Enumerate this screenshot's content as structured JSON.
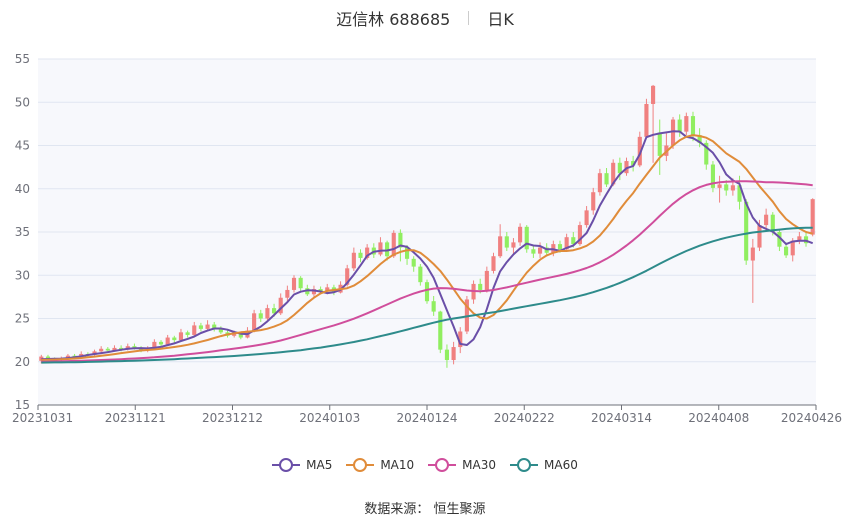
{
  "header": {
    "title_left": "迈信林 688685",
    "title_right": "日K"
  },
  "source_label": "数据来源：  恒生聚源",
  "chart_data": {
    "type": "candlestick",
    "x_ticks": [
      "20231031",
      "20231121",
      "20231212",
      "20240103",
      "20240124",
      "20240222",
      "20240314",
      "20240408",
      "20240426"
    ],
    "ylim": [
      15,
      55
    ],
    "y_ticks": [
      15,
      20,
      25,
      30,
      35,
      40,
      45,
      50,
      55
    ],
    "up_color": "#f08080",
    "down_color": "#90ee60",
    "series": [
      {
        "name": "MA5",
        "color": "#6a4fa8",
        "key": "ma5"
      },
      {
        "name": "MA10",
        "color": "#e08c3a",
        "key": "ma10"
      },
      {
        "name": "MA30",
        "color": "#d04e9c",
        "key": "ma30"
      },
      {
        "name": "MA60",
        "color": "#2e8b8b",
        "key": "ma60"
      }
    ],
    "candles": [
      [
        20.1,
        20.6,
        19.8,
        20.8
      ],
      [
        20.6,
        20.3,
        20.1,
        20.8
      ],
      [
        20.3,
        20.2,
        20.0,
        20.5
      ],
      [
        20.2,
        20.4,
        20.0,
        20.6
      ],
      [
        20.4,
        20.7,
        20.2,
        20.9
      ],
      [
        20.7,
        20.5,
        20.3,
        20.9
      ],
      [
        20.5,
        20.9,
        20.4,
        21.2
      ],
      [
        20.9,
        20.8,
        20.6,
        21.1
      ],
      [
        20.8,
        21.2,
        20.7,
        21.4
      ],
      [
        21.2,
        21.5,
        21.0,
        21.8
      ],
      [
        21.5,
        21.3,
        21.0,
        21.7
      ],
      [
        21.3,
        21.6,
        21.2,
        21.9
      ],
      [
        21.6,
        21.4,
        21.2,
        21.9
      ],
      [
        21.4,
        21.8,
        21.3,
        22.1
      ],
      [
        21.8,
        21.6,
        21.4,
        22.1
      ],
      [
        21.6,
        21.3,
        21.1,
        21.8
      ],
      [
        21.3,
        21.5,
        21.1,
        21.8
      ],
      [
        21.5,
        22.3,
        21.4,
        22.6
      ],
      [
        22.3,
        22.0,
        21.8,
        22.5
      ],
      [
        22.0,
        22.8,
        21.9,
        23.1
      ],
      [
        22.8,
        22.5,
        22.2,
        23.0
      ],
      [
        22.5,
        23.4,
        22.4,
        23.8
      ],
      [
        23.4,
        23.1,
        22.8,
        23.6
      ],
      [
        23.1,
        24.2,
        23.0,
        24.6
      ],
      [
        24.2,
        23.8,
        23.5,
        24.5
      ],
      [
        23.8,
        24.3,
        23.6,
        24.8
      ],
      [
        24.3,
        23.8,
        23.5,
        24.6
      ],
      [
        23.8,
        23.4,
        23.2,
        24.1
      ],
      [
        23.4,
        23.0,
        22.8,
        23.6
      ],
      [
        23.0,
        23.2,
        22.8,
        23.6
      ],
      [
        23.2,
        22.8,
        22.6,
        23.5
      ],
      [
        22.8,
        23.6,
        22.7,
        24.0
      ],
      [
        23.6,
        25.6,
        23.4,
        26.0
      ],
      [
        25.6,
        25.0,
        24.6,
        26.0
      ],
      [
        25.0,
        26.2,
        24.8,
        26.6
      ],
      [
        26.2,
        25.6,
        25.2,
        26.7
      ],
      [
        25.6,
        27.4,
        25.4,
        27.9
      ],
      [
        27.4,
        28.3,
        27.0,
        28.8
      ],
      [
        28.3,
        29.7,
        28.0,
        30.0
      ],
      [
        29.7,
        28.5,
        28.0,
        29.9
      ],
      [
        28.5,
        27.8,
        27.6,
        28.9
      ],
      [
        27.8,
        28.4,
        27.5,
        28.8
      ],
      [
        28.4,
        28.1,
        27.8,
        28.7
      ],
      [
        28.1,
        28.6,
        27.8,
        29.0
      ],
      [
        28.6,
        28.0,
        27.7,
        28.9
      ],
      [
        28.0,
        28.9,
        27.9,
        29.3
      ],
      [
        28.9,
        30.8,
        28.7,
        31.2
      ],
      [
        30.8,
        32.6,
        30.5,
        33.2
      ],
      [
        32.6,
        32.0,
        31.5,
        33.0
      ],
      [
        32.0,
        33.2,
        31.8,
        33.6
      ],
      [
        33.2,
        32.4,
        32.0,
        33.7
      ],
      [
        32.4,
        33.8,
        32.2,
        34.4
      ],
      [
        33.8,
        32.2,
        31.7,
        34.0
      ],
      [
        32.2,
        34.9,
        32.0,
        35.2
      ],
      [
        34.9,
        33.2,
        31.6,
        35.3
      ],
      [
        33.2,
        31.9,
        31.2,
        33.5
      ],
      [
        31.9,
        31.0,
        30.4,
        32.2
      ],
      [
        31.0,
        29.2,
        28.8,
        31.3
      ],
      [
        29.2,
        27.0,
        26.7,
        29.5
      ],
      [
        27.0,
        25.8,
        25.3,
        27.6
      ],
      [
        25.8,
        21.4,
        21.0,
        25.9
      ],
      [
        21.4,
        20.2,
        19.3,
        22.0
      ],
      [
        20.2,
        21.7,
        19.7,
        22.3
      ],
      [
        21.7,
        23.5,
        21.0,
        24.0
      ],
      [
        23.5,
        27.2,
        23.2,
        27.6
      ],
      [
        27.2,
        29.0,
        26.7,
        29.4
      ],
      [
        29.0,
        28.3,
        27.9,
        29.6
      ],
      [
        28.3,
        30.5,
        28.0,
        31.0
      ],
      [
        30.5,
        32.2,
        30.2,
        32.6
      ],
      [
        32.2,
        34.5,
        32.0,
        35.9
      ],
      [
        34.5,
        33.2,
        32.8,
        35.0
      ],
      [
        33.2,
        33.8,
        32.5,
        34.3
      ],
      [
        33.8,
        35.6,
        33.4,
        36.0
      ],
      [
        35.6,
        33.0,
        32.6,
        35.8
      ],
      [
        33.0,
        32.5,
        32.0,
        33.5
      ],
      [
        32.5,
        33.2,
        32.0,
        33.8
      ],
      [
        33.2,
        32.6,
        32.2,
        33.7
      ],
      [
        32.6,
        33.6,
        32.2,
        34.0
      ],
      [
        33.6,
        33.0,
        32.6,
        34.0
      ],
      [
        33.0,
        34.4,
        32.8,
        34.8
      ],
      [
        34.4,
        33.6,
        33.2,
        35.0
      ],
      [
        33.6,
        35.8,
        33.4,
        36.2
      ],
      [
        35.8,
        37.5,
        35.5,
        38.0
      ],
      [
        37.5,
        39.6,
        37.0,
        40.1
      ],
      [
        39.6,
        41.8,
        39.2,
        42.3
      ],
      [
        41.8,
        40.5,
        40.2,
        42.4
      ],
      [
        40.5,
        43.0,
        40.3,
        43.4
      ],
      [
        43.0,
        41.8,
        41.0,
        43.6
      ],
      [
        41.8,
        43.2,
        41.5,
        43.6
      ],
      [
        43.2,
        42.7,
        42.0,
        43.8
      ],
      [
        42.7,
        46.0,
        42.5,
        46.6
      ],
      [
        46.0,
        49.8,
        45.8,
        50.4
      ],
      [
        49.8,
        51.9,
        43.0,
        52.0
      ],
      [
        46.5,
        43.8,
        41.6,
        48.0
      ],
      [
        43.8,
        45.0,
        43.2,
        46.4
      ],
      [
        45.0,
        48.0,
        44.6,
        48.3
      ],
      [
        48.0,
        46.6,
        46.0,
        48.6
      ],
      [
        46.6,
        48.4,
        46.2,
        48.8
      ],
      [
        48.4,
        46.2,
        45.5,
        48.9
      ],
      [
        46.2,
        45.3,
        44.8,
        47.0
      ],
      [
        45.3,
        42.8,
        42.2,
        45.6
      ],
      [
        42.8,
        40.1,
        39.6,
        43.2
      ],
      [
        40.1,
        40.5,
        38.4,
        41.5
      ],
      [
        40.5,
        39.8,
        39.2,
        41.0
      ],
      [
        39.8,
        40.4,
        39.2,
        41.2
      ],
      [
        40.4,
        38.5,
        37.6,
        41.5
      ],
      [
        38.5,
        31.7,
        31.2,
        38.8
      ],
      [
        31.7,
        33.2,
        26.8,
        34.2
      ],
      [
        33.2,
        35.8,
        32.8,
        36.4
      ],
      [
        35.8,
        37.0,
        35.4,
        37.7
      ],
      [
        37.0,
        35.0,
        34.6,
        37.3
      ],
      [
        35.0,
        33.3,
        32.8,
        35.2
      ],
      [
        33.3,
        32.3,
        32.0,
        33.8
      ],
      [
        32.3,
        34.0,
        31.6,
        34.3
      ],
      [
        34.0,
        34.5,
        33.6,
        35.0
      ],
      [
        34.5,
        33.7,
        33.3,
        34.9
      ],
      [
        34.7,
        38.8,
        34.5,
        38.9
      ]
    ],
    "ma5": [
      20.3,
      20.32,
      20.34,
      20.36,
      20.42,
      20.52,
      20.62,
      20.78,
      20.9,
      21.0,
      21.12,
      21.26,
      21.38,
      21.5,
      21.56,
      21.58,
      21.54,
      21.62,
      21.72,
      21.92,
      22.12,
      22.4,
      22.64,
      22.92,
      23.32,
      23.6,
      23.84,
      23.84,
      23.7,
      23.44,
      23.24,
      23.2,
      23.62,
      24.06,
      24.68,
      25.4,
      26.16,
      26.9,
      27.78,
      28.1,
      28.26,
      28.24,
      28.12,
      27.94,
      28.04,
      28.32,
      29.12,
      30.08,
      31.14,
      32.26,
      32.72,
      32.84,
      32.86,
      33.04,
      33.44,
      33.28,
      32.64,
      31.92,
      31.0,
      29.72,
      27.82,
      25.96,
      24.08,
      22.06,
      21.94,
      22.58,
      24.0,
      26.08,
      28.54,
      30.44,
      31.52,
      32.4,
      33.1,
      33.66,
      33.44,
      33.38,
      33.0,
      33.0,
      32.82,
      33.16,
      33.44,
      34.12,
      34.88,
      36.34,
      38.06,
      39.38,
      40.64,
      41.68,
      42.38,
      42.62,
      44.0,
      45.96,
      46.24,
      46.4,
      46.52,
      46.64,
      46.62,
      46.0,
      45.86,
      45.4,
      44.82,
      44.16,
      43.06,
      41.66,
      40.96,
      40.56,
      38.3,
      36.68,
      35.72,
      35.36,
      35.04,
      34.4,
      33.6,
      33.9,
      34.0,
      34.0,
      33.7
    ],
    "ma10": [
      20.2,
      20.22,
      20.25,
      20.28,
      20.32,
      20.37,
      20.43,
      20.52,
      20.6,
      20.7,
      20.78,
      20.88,
      21.0,
      21.1,
      21.2,
      21.3,
      21.36,
      21.42,
      21.5,
      21.6,
      21.7,
      21.82,
      21.96,
      22.12,
      22.32,
      22.52,
      22.74,
      22.96,
      23.16,
      23.28,
      23.4,
      23.46,
      23.56,
      23.66,
      23.82,
      24.06,
      24.36,
      24.8,
      25.4,
      26.1,
      26.8,
      27.4,
      27.9,
      28.2,
      28.3,
      28.4,
      28.5,
      28.8,
      29.3,
      29.9,
      30.6,
      31.3,
      31.9,
      32.4,
      32.7,
      32.9,
      32.9,
      32.6,
      32.0,
      31.3,
      30.5,
      29.5,
      28.4,
      27.3,
      26.4,
      25.6,
      25.1,
      25.0,
      25.4,
      26.2,
      27.1,
      28.2,
      29.3,
      30.3,
      31.1,
      31.8,
      32.3,
      32.6,
      32.8,
      32.8,
      32.9,
      33.1,
      33.4,
      33.9,
      34.6,
      35.5,
      36.5,
      37.6,
      38.6,
      39.5,
      40.6,
      41.6,
      42.6,
      43.6,
      44.3,
      45.0,
      45.6,
      46.0,
      46.2,
      46.1,
      45.9,
      45.5,
      44.8,
      44.1,
      43.6,
      43.1,
      42.3,
      41.3,
      40.3,
      39.4,
      38.5,
      37.4,
      36.5,
      35.9,
      35.4,
      35.0,
      34.8
    ],
    "ma30": [
      20.0,
      20.02,
      20.04,
      20.06,
      20.08,
      20.1,
      20.12,
      20.14,
      20.17,
      20.2,
      20.23,
      20.26,
      20.3,
      20.34,
      20.38,
      20.42,
      20.47,
      20.52,
      20.58,
      20.64,
      20.7,
      20.78,
      20.86,
      20.94,
      21.02,
      21.12,
      21.22,
      21.32,
      21.42,
      21.52,
      21.62,
      21.74,
      21.86,
      21.98,
      22.12,
      22.28,
      22.46,
      22.66,
      22.88,
      23.1,
      23.32,
      23.54,
      23.76,
      23.98,
      24.2,
      24.44,
      24.7,
      24.98,
      25.28,
      25.6,
      25.94,
      26.28,
      26.62,
      26.96,
      27.3,
      27.6,
      27.88,
      28.12,
      28.32,
      28.46,
      28.52,
      28.5,
      28.44,
      28.34,
      28.24,
      28.18,
      28.16,
      28.2,
      28.3,
      28.44,
      28.6,
      28.78,
      28.96,
      29.14,
      29.32,
      29.5,
      29.66,
      29.82,
      29.98,
      30.16,
      30.36,
      30.58,
      30.84,
      31.14,
      31.5,
      31.9,
      32.36,
      32.88,
      33.44,
      34.04,
      34.7,
      35.4,
      36.12,
      36.86,
      37.58,
      38.26,
      38.86,
      39.38,
      39.82,
      40.18,
      40.44,
      40.62,
      40.74,
      40.8,
      40.84,
      40.86,
      40.86,
      40.84,
      40.8,
      40.76,
      40.74,
      40.72,
      40.68,
      40.62,
      40.56,
      40.5,
      40.4
    ],
    "ma60": [
      19.9,
      19.91,
      19.92,
      19.93,
      19.94,
      19.95,
      19.96,
      19.98,
      20.0,
      20.02,
      20.04,
      20.06,
      20.08,
      20.1,
      20.12,
      20.14,
      20.17,
      20.2,
      20.23,
      20.26,
      20.3,
      20.34,
      20.38,
      20.42,
      20.46,
      20.5,
      20.54,
      20.58,
      20.62,
      20.66,
      20.72,
      20.78,
      20.84,
      20.9,
      20.96,
      21.02,
      21.1,
      21.18,
      21.26,
      21.34,
      21.44,
      21.54,
      21.64,
      21.76,
      21.88,
      22.0,
      22.14,
      22.28,
      22.44,
      22.6,
      22.78,
      22.96,
      23.14,
      23.32,
      23.52,
      23.72,
      23.92,
      24.12,
      24.32,
      24.52,
      24.7,
      24.86,
      25.0,
      25.12,
      25.24,
      25.36,
      25.48,
      25.6,
      25.72,
      25.86,
      26.0,
      26.14,
      26.28,
      26.42,
      26.56,
      26.7,
      26.84,
      26.98,
      27.12,
      27.28,
      27.44,
      27.62,
      27.82,
      28.04,
      28.28,
      28.54,
      28.82,
      29.12,
      29.44,
      29.78,
      30.14,
      30.52,
      30.92,
      31.32,
      31.72,
      32.1,
      32.46,
      32.8,
      33.12,
      33.42,
      33.68,
      33.92,
      34.14,
      34.34,
      34.52,
      34.68,
      34.82,
      34.94,
      35.04,
      35.12,
      35.2,
      35.28,
      35.36,
      35.42,
      35.46,
      35.5,
      35.5
    ]
  }
}
